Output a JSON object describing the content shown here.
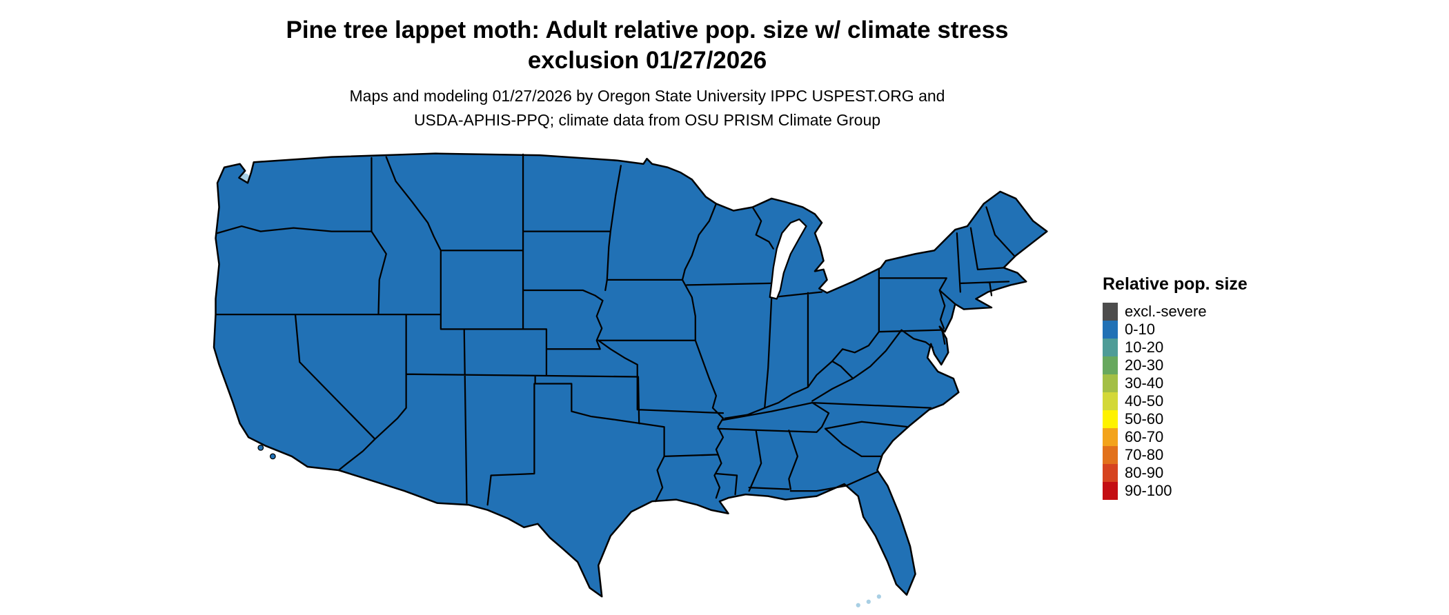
{
  "title": {
    "line1": "Pine tree lappet moth: Adult relative pop. size w/ climate stress",
    "line2": "exclusion 01/27/2026"
  },
  "subtitle": {
    "line1": "Maps and modeling 01/27/2026 by Oregon State University IPPC USPEST.ORG and",
    "line2": "USDA-APHIS-PPQ; climate data from OSU PRISM Climate Group"
  },
  "legend": {
    "title": "Relative pop. size",
    "items": [
      {
        "label": "excl.-severe",
        "color": "#4d4d4d"
      },
      {
        "label": "0-10",
        "color": "#2171b5"
      },
      {
        "label": "10-20",
        "color": "#4e9c97"
      },
      {
        "label": "20-30",
        "color": "#67a85e"
      },
      {
        "label": "30-40",
        "color": "#a3bf45"
      },
      {
        "label": "40-50",
        "color": "#d3d838"
      },
      {
        "label": "50-60",
        "color": "#fef200"
      },
      {
        "label": "60-70",
        "color": "#f3a31b"
      },
      {
        "label": "70-80",
        "color": "#e2711b"
      },
      {
        "label": "80-90",
        "color": "#d6431f"
      },
      {
        "label": "90-100",
        "color": "#c40e13"
      }
    ]
  },
  "map": {
    "fill_category": "0-10",
    "fill_color": "#2171b5",
    "border_color": "#000000",
    "water_accent_color": "#a8cfe4"
  }
}
